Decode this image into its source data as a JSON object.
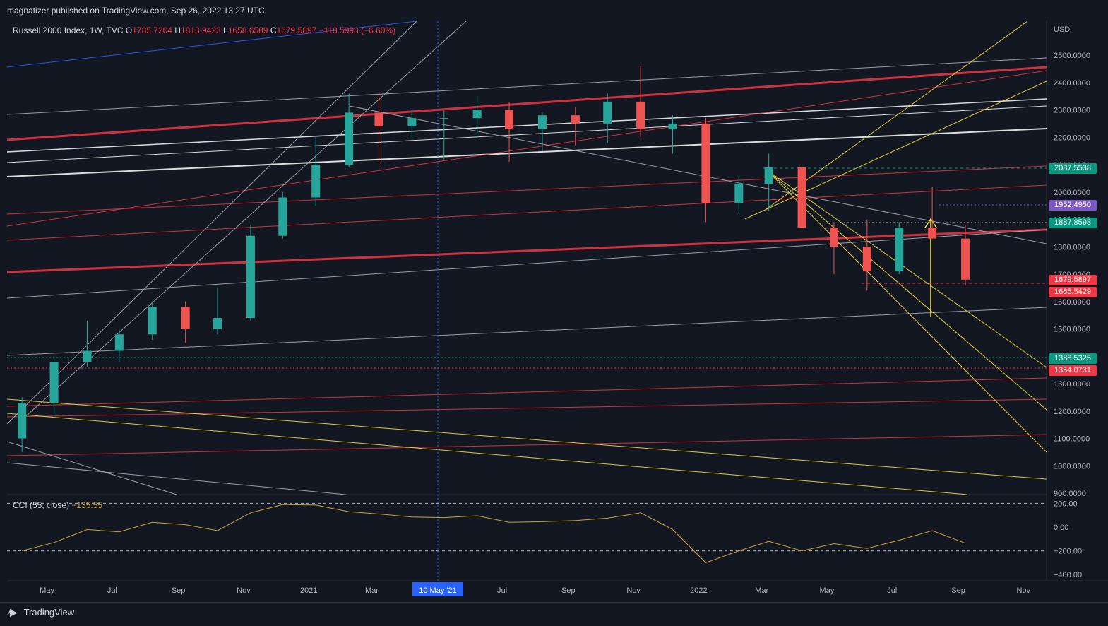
{
  "header": {
    "published": "magnatizer published on TradingView.com, Sep 26, 2022 13:27 UTC"
  },
  "legend": {
    "symbol": "Russell 2000 Index, 1W, TVC",
    "open_label": "O",
    "open": "1785.7204",
    "high_label": "H",
    "high": "1813.9423",
    "low_label": "L",
    "low": "1658.6589",
    "close_label": "C",
    "close": "1679.5897",
    "change": "−118.5993 (−6.60%)"
  },
  "cci_legend": {
    "name": "CCI (55, close)",
    "value": "−135.55"
  },
  "price_axis": {
    "currency": "USD",
    "ticks": [
      "2500.0000",
      "2400.0000",
      "2300.0000",
      "2200.0000",
      "2100.0000",
      "2000.0000",
      "1900.0000",
      "1800.0000",
      "1700.0000",
      "1600.0000",
      "1500.0000",
      "1400.0000",
      "1300.0000",
      "1200.0000",
      "1100.0000",
      "1000.0000",
      "900.0000"
    ]
  },
  "price_tags": [
    {
      "value": "2087.5538",
      "color": "#089981"
    },
    {
      "value": "1952.4950",
      "color": "#7e57c2"
    },
    {
      "value": "1887.8593",
      "color": "#089981"
    },
    {
      "value": "1679.5897",
      "color": "#f23645"
    },
    {
      "value": "1665.5429",
      "color": "#f23645"
    },
    {
      "value": "1388.5325",
      "color": "#089981"
    },
    {
      "value": "1354.0731",
      "color": "#f23645"
    }
  ],
  "cci_axis": {
    "ticks": [
      "200.00",
      "0.00",
      "−200.00",
      "−400.00"
    ]
  },
  "time_axis": {
    "labels": [
      "May",
      "Jul",
      "Sep",
      "Nov",
      "2021",
      "Mar",
      "May",
      "Jul",
      "Sep",
      "Nov",
      "2022",
      "Mar",
      "May",
      "Jul",
      "Sep",
      "Nov"
    ],
    "cursor_label": "10 May '21"
  },
  "footer": {
    "brand": "TradingView"
  },
  "colors": {
    "up": "#26a69a",
    "down": "#ef5350",
    "cci": "#c8a23a"
  },
  "chart_data": {
    "type": "candlestick",
    "title": "Russell 2000 Index, 1W, TVC",
    "ylabel": "USD",
    "ylim": [
      900,
      2600
    ],
    "cci_ylim": [
      -400,
      200
    ],
    "x_range": [
      "2020-04-01",
      "2022-11-30"
    ],
    "candles_monthly_approx": [
      {
        "t": "2020-04",
        "o": 1100,
        "h": 1250,
        "l": 1050,
        "c": 1230
      },
      {
        "t": "2020-05",
        "o": 1230,
        "h": 1400,
        "l": 1180,
        "c": 1380
      },
      {
        "t": "2020-06",
        "o": 1380,
        "h": 1530,
        "l": 1360,
        "c": 1420
      },
      {
        "t": "2020-07",
        "o": 1420,
        "h": 1500,
        "l": 1380,
        "c": 1480
      },
      {
        "t": "2020-08",
        "o": 1480,
        "h": 1600,
        "l": 1460,
        "c": 1580
      },
      {
        "t": "2020-09",
        "o": 1580,
        "h": 1600,
        "l": 1450,
        "c": 1500
      },
      {
        "t": "2020-10",
        "o": 1500,
        "h": 1650,
        "l": 1480,
        "c": 1540
      },
      {
        "t": "2020-11",
        "o": 1540,
        "h": 1880,
        "l": 1530,
        "c": 1840
      },
      {
        "t": "2020-12",
        "o": 1840,
        "h": 2000,
        "l": 1830,
        "c": 1980
      },
      {
        "t": "2021-01",
        "o": 1980,
        "h": 2200,
        "l": 1950,
        "c": 2100
      },
      {
        "t": "2021-02",
        "o": 2100,
        "h": 2360,
        "l": 2090,
        "c": 2290
      },
      {
        "t": "2021-03",
        "o": 2290,
        "h": 2360,
        "l": 2100,
        "c": 2240
      },
      {
        "t": "2021-04",
        "o": 2240,
        "h": 2300,
        "l": 2200,
        "c": 2270
      },
      {
        "t": "2021-05",
        "o": 2270,
        "h": 2300,
        "l": 2120,
        "c": 2270
      },
      {
        "t": "2021-06",
        "o": 2270,
        "h": 2350,
        "l": 2200,
        "c": 2300
      },
      {
        "t": "2021-07",
        "o": 2300,
        "h": 2330,
        "l": 2110,
        "c": 2230
      },
      {
        "t": "2021-08",
        "o": 2230,
        "h": 2290,
        "l": 2150,
        "c": 2280
      },
      {
        "t": "2021-09",
        "o": 2280,
        "h": 2310,
        "l": 2170,
        "c": 2250
      },
      {
        "t": "2021-10",
        "o": 2250,
        "h": 2360,
        "l": 2180,
        "c": 2330
      },
      {
        "t": "2021-11",
        "o": 2330,
        "h": 2460,
        "l": 2200,
        "c": 2230
      },
      {
        "t": "2021-12",
        "o": 2230,
        "h": 2280,
        "l": 2140,
        "c": 2250
      },
      {
        "t": "2022-01",
        "o": 2250,
        "h": 2270,
        "l": 1890,
        "c": 1960
      },
      {
        "t": "2022-02",
        "o": 1960,
        "h": 2060,
        "l": 1920,
        "c": 2030
      },
      {
        "t": "2022-03",
        "o": 2030,
        "h": 2140,
        "l": 1930,
        "c": 2090
      },
      {
        "t": "2022-04",
        "o": 2090,
        "h": 2100,
        "l": 1890,
        "c": 1870
      },
      {
        "t": "2022-05",
        "o": 1870,
        "h": 1890,
        "l": 1700,
        "c": 1800
      },
      {
        "t": "2022-06",
        "o": 1800,
        "h": 1900,
        "l": 1640,
        "c": 1710
      },
      {
        "t": "2022-07",
        "o": 1710,
        "h": 1890,
        "l": 1700,
        "c": 1870
      },
      {
        "t": "2022-08",
        "o": 1870,
        "h": 2020,
        "l": 1840,
        "c": 1830
      },
      {
        "t": "2022-09",
        "o": 1830,
        "h": 1880,
        "l": 1658,
        "c": 1680
      }
    ],
    "cci_monthly_approx": [
      {
        "t": "2020-04",
        "v": -200
      },
      {
        "t": "2020-05",
        "v": -130
      },
      {
        "t": "2020-06",
        "v": -20
      },
      {
        "t": "2020-07",
        "v": -40
      },
      {
        "t": "2020-08",
        "v": 40
      },
      {
        "t": "2020-09",
        "v": 20
      },
      {
        "t": "2020-10",
        "v": -30
      },
      {
        "t": "2020-11",
        "v": 120
      },
      {
        "t": "2020-12",
        "v": 190
      },
      {
        "t": "2021-01",
        "v": 185
      },
      {
        "t": "2021-02",
        "v": 130
      },
      {
        "t": "2021-03",
        "v": 110
      },
      {
        "t": "2021-04",
        "v": 85
      },
      {
        "t": "2021-05",
        "v": 80
      },
      {
        "t": "2021-06",
        "v": 95
      },
      {
        "t": "2021-07",
        "v": 40
      },
      {
        "t": "2021-08",
        "v": 45
      },
      {
        "t": "2021-09",
        "v": 55
      },
      {
        "t": "2021-10",
        "v": 75
      },
      {
        "t": "2021-11",
        "v": 120
      },
      {
        "t": "2021-12",
        "v": -20
      },
      {
        "t": "2022-01",
        "v": -300
      },
      {
        "t": "2022-02",
        "v": -200
      },
      {
        "t": "2022-03",
        "v": -120
      },
      {
        "t": "2022-04",
        "v": -200
      },
      {
        "t": "2022-05",
        "v": -140
      },
      {
        "t": "2022-06",
        "v": -180
      },
      {
        "t": "2022-07",
        "v": -110
      },
      {
        "t": "2022-08",
        "v": -30
      },
      {
        "t": "2022-09",
        "v": -135.55
      }
    ]
  }
}
